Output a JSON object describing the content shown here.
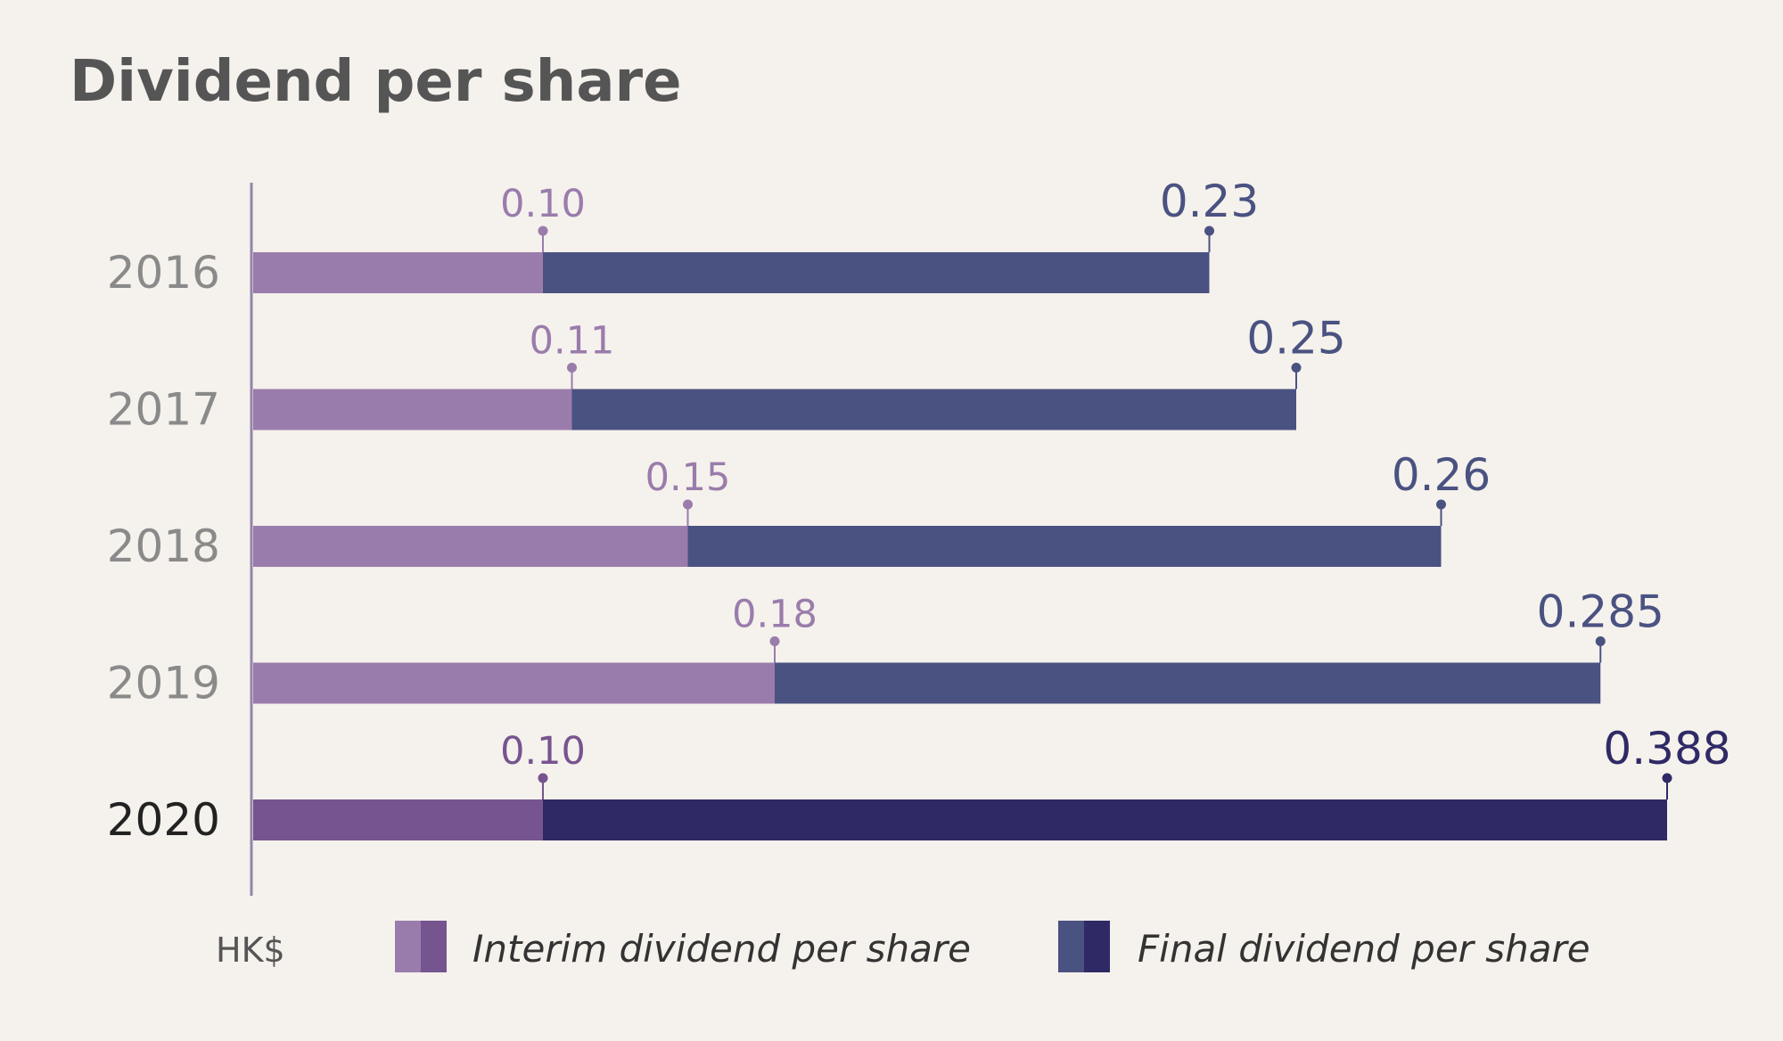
{
  "chart_data": {
    "type": "bar",
    "orientation": "horizontal",
    "stacked": true,
    "title": "Dividend per share",
    "unit_label": "HK$",
    "categories": [
      "2016",
      "2017",
      "2018",
      "2019",
      "2020"
    ],
    "highlight_category": "2020",
    "series": [
      {
        "name": "Interim dividend per share",
        "values": [
          0.1,
          0.11,
          0.15,
          0.18,
          0.1
        ]
      },
      {
        "name": "Final dividend per share",
        "values": [
          0.23,
          0.25,
          0.26,
          0.285,
          0.388
        ]
      }
    ],
    "interim_labels": [
      "0.10",
      "0.11",
      "0.15",
      "0.18",
      "0.10"
    ],
    "final_labels": [
      "0.23",
      "0.25",
      "0.26",
      "0.285",
      "0.388"
    ],
    "cumulative_ends": [
      0.33,
      0.36,
      0.41,
      0.465,
      0.488
    ],
    "legend_position": "bottom",
    "grid": false,
    "colors": {
      "background": "#f5f1ec",
      "title": "#555555",
      "year": "#8a8a8a",
      "year_highlight": "#222222",
      "unit": "#555555",
      "legend_text": "#333333",
      "axis": "#9583ad",
      "interim": "#9a7cac",
      "interim_highlight": "#76548f",
      "final": "#4a5281",
      "final_highlight": "#2f2a66"
    }
  }
}
